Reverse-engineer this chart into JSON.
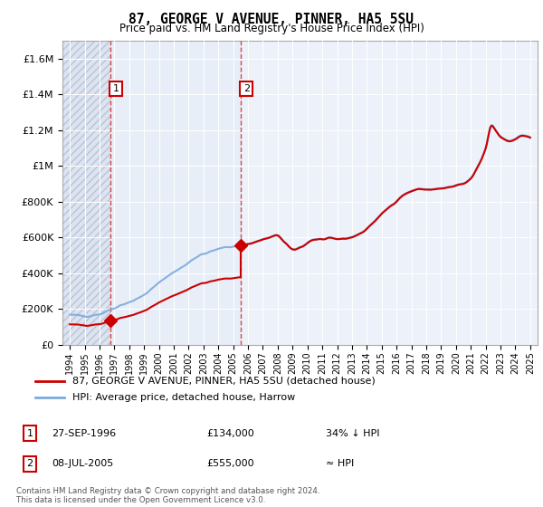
{
  "title": "87, GEORGE V AVENUE, PINNER, HA5 5SU",
  "subtitle": "Price paid vs. HM Land Registry's House Price Index (HPI)",
  "legend_line1": "87, GEORGE V AVENUE, PINNER, HA5 5SU (detached house)",
  "legend_line2": "HPI: Average price, detached house, Harrow",
  "annotation1_label": "1",
  "annotation1_date": "27-SEP-1996",
  "annotation1_price": "£134,000",
  "annotation1_note": "34% ↓ HPI",
  "annotation2_label": "2",
  "annotation2_date": "08-JUL-2005",
  "annotation2_price": "£555,000",
  "annotation2_note": "≈ HPI",
  "footnote": "Contains HM Land Registry data © Crown copyright and database right 2024.\nThis data is licensed under the Open Government Licence v3.0.",
  "sale1_x": 1996.74,
  "sale1_y": 134000,
  "sale2_x": 2005.52,
  "sale2_y": 555000,
  "ylim": [
    0,
    1700000
  ],
  "xlim": [
    1993.5,
    2025.5
  ],
  "red_color": "#cc0000",
  "blue_color": "#7aaadd",
  "hatch_color": "#dde4f0",
  "lightblue_fill": "#e8eef8",
  "grid_color": "#cccccc",
  "plot_bg": "#ffffff"
}
